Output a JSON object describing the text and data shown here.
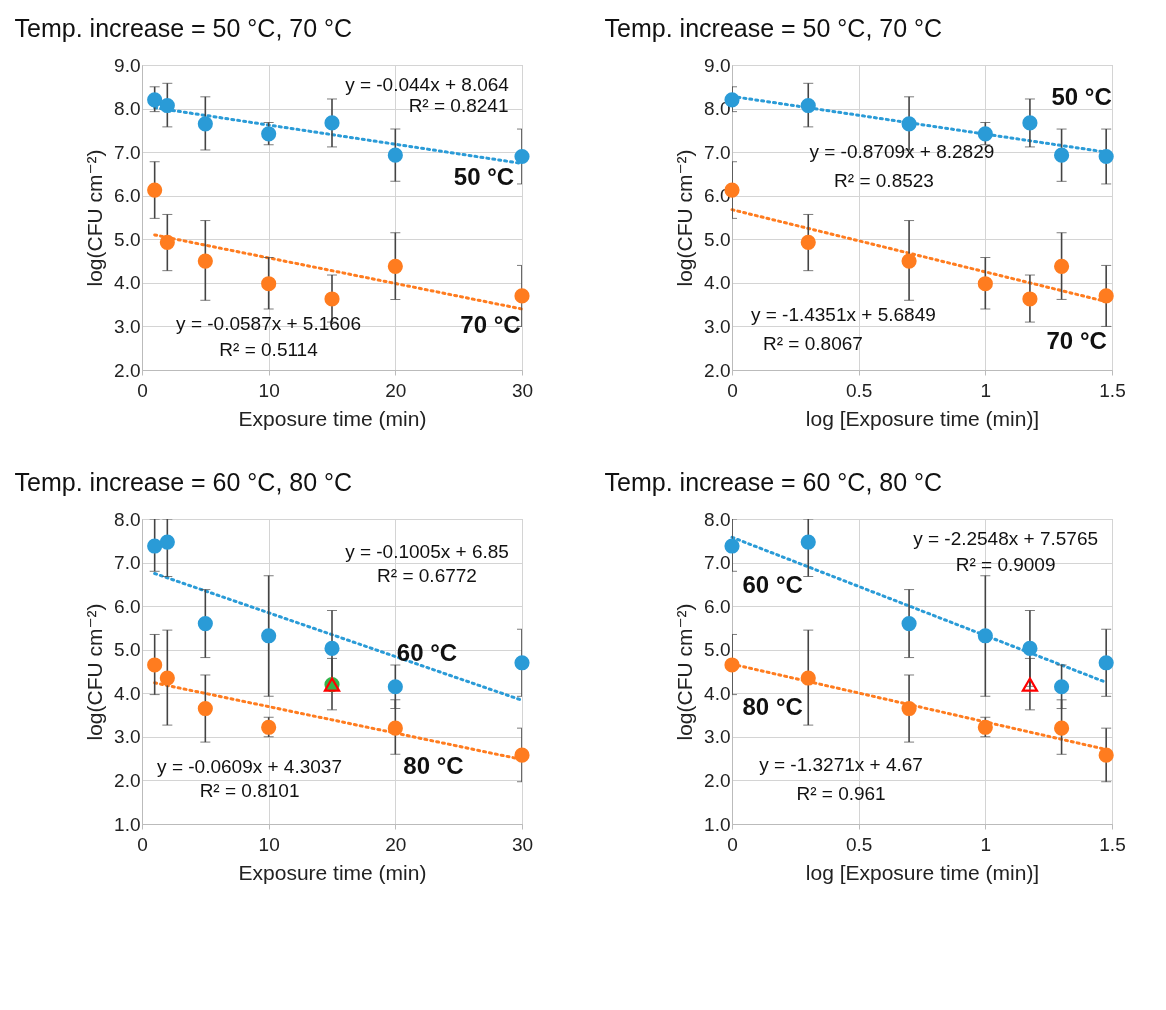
{
  "chart_data": [
    {
      "type": "scatter",
      "title": "Temp. increase = 50 °C, 70 °C",
      "xlabel": "Exposure time (min)",
      "ylabel": "log(CFU cm⁻²)",
      "x": [
        1,
        2,
        5,
        10,
        15,
        20,
        30
      ],
      "xlim": [
        0,
        30
      ],
      "xticks": [
        0,
        10,
        20,
        30
      ],
      "ylim": [
        2,
        9
      ],
      "yticks": [
        {
          "value": 2,
          "label": "2.0"
        },
        {
          "value": 3,
          "label": "3.0"
        },
        {
          "value": 4,
          "label": "4.0"
        },
        {
          "value": 5,
          "label": "5.0"
        },
        {
          "value": 6,
          "label": "6.0"
        },
        {
          "value": 7,
          "label": "7.0"
        },
        {
          "value": 8,
          "label": "8.0"
        },
        {
          "value": 9,
          "label": "9.0"
        }
      ],
      "grid": true,
      "marker": "circle",
      "series": [
        {
          "type": "line",
          "x": [
            1,
            30
          ],
          "values": [
            8.02,
            6.74
          ],
          "color": "#2a9bd7",
          "line_style": "dotted",
          "marker": "none"
        },
        {
          "type": "line",
          "x": [
            1,
            30
          ],
          "values": [
            5.1,
            3.4
          ],
          "color": "#ff7c1f",
          "line_style": "dotted",
          "marker": "none"
        },
        {
          "color": "#2a9bd7",
          "values": [
            8.2,
            8.07,
            7.65,
            7.42,
            7.67,
            6.93,
            6.9
          ],
          "errors": [
            [
              7.93,
              8.5
            ],
            [
              7.58,
              8.58
            ],
            [
              7.05,
              8.27
            ],
            [
              7.17,
              7.68
            ],
            [
              7.12,
              8.22
            ],
            [
              6.33,
              7.53
            ],
            [
              6.27,
              7.53
            ]
          ]
        },
        {
          "color": "#ff7c1f",
          "values": [
            6.13,
            4.93,
            4.5,
            3.98,
            3.63,
            4.38,
            3.7
          ],
          "errors": [
            [
              5.48,
              6.78
            ],
            [
              4.28,
              5.57
            ],
            [
              3.6,
              5.43
            ],
            [
              3.4,
              4.58
            ],
            [
              3.1,
              4.18
            ],
            [
              3.62,
              5.15
            ],
            [
              3.0,
              4.4
            ]
          ]
        }
      ],
      "annotations": [
        "y = -0.044x + 8.064",
        "R² = 0.8241",
        "50 °C",
        "y = -0.0587x + 5.1606",
        "R² = 0.5114",
        "70 °C"
      ]
    },
    {
      "type": "scatter",
      "title": "Temp. increase = 50 °C, 70 °C",
      "xlabel": "log [Exposure time (min)]",
      "ylabel": "log(CFU cm⁻²)",
      "x": [
        0,
        0.301,
        0.699,
        1,
        1.176,
        1.301,
        1.477
      ],
      "xlim": [
        0,
        1.5
      ],
      "xticks": [
        0,
        0.5,
        1,
        1.5
      ],
      "ylim": [
        2,
        9
      ],
      "yticks": [
        {
          "value": 2,
          "label": "2.0"
        },
        {
          "value": 3,
          "label": "3.0"
        },
        {
          "value": 4,
          "label": "4.0"
        },
        {
          "value": 5,
          "label": "5.0"
        },
        {
          "value": 6,
          "label": "6.0"
        },
        {
          "value": 7,
          "label": "7.0"
        },
        {
          "value": 8,
          "label": "8.0"
        },
        {
          "value": 9,
          "label": "9.0"
        }
      ],
      "grid": true,
      "marker": "circle",
      "series": [
        {
          "type": "line",
          "x": [
            0,
            1.477
          ],
          "values": [
            8.28,
            7.0
          ],
          "color": "#2a9bd7",
          "line_style": "dotted",
          "marker": "none"
        },
        {
          "type": "line",
          "x": [
            0,
            1.477
          ],
          "values": [
            5.68,
            3.57
          ],
          "color": "#ff7c1f",
          "line_style": "dotted",
          "marker": "none"
        },
        {
          "color": "#2a9bd7",
          "values": [
            8.2,
            8.07,
            7.65,
            7.42,
            7.67,
            6.93,
            6.9
          ],
          "errors": [
            [
              7.93,
              8.5
            ],
            [
              7.58,
              8.58
            ],
            [
              7.05,
              8.27
            ],
            [
              7.17,
              7.68
            ],
            [
              7.12,
              8.22
            ],
            [
              6.33,
              7.53
            ],
            [
              6.27,
              7.53
            ]
          ]
        },
        {
          "color": "#ff7c1f",
          "values": [
            6.13,
            4.93,
            4.5,
            3.98,
            3.63,
            4.38,
            3.7
          ],
          "errors": [
            [
              5.48,
              6.78
            ],
            [
              4.28,
              5.57
            ],
            [
              3.6,
              5.43
            ],
            [
              3.4,
              4.58
            ],
            [
              3.1,
              4.18
            ],
            [
              3.62,
              5.15
            ],
            [
              3.0,
              4.4
            ]
          ]
        }
      ],
      "annotations": [
        "y = -0.8709x + 8.2829",
        "R² = 0.8523",
        "50 °C",
        "y = -1.4351x + 5.6849",
        "R² = 0.8067",
        "70 °C"
      ]
    },
    {
      "type": "scatter",
      "title": "Temp. increase = 60 °C, 80 °C",
      "xlabel": "Exposure time (min)",
      "ylabel": "log(CFU cm⁻²)",
      "x": [
        1,
        2,
        5,
        10,
        15,
        20,
        30
      ],
      "xlim": [
        0,
        30
      ],
      "xticks": [
        0,
        10,
        20,
        30
      ],
      "ylim": [
        1,
        8
      ],
      "yticks": [
        {
          "value": 1,
          "label": "1.0"
        },
        {
          "value": 2,
          "label": "2.0"
        },
        {
          "value": 3,
          "label": "3.0"
        },
        {
          "value": 4,
          "label": "4.0"
        },
        {
          "value": 5,
          "label": "5.0"
        },
        {
          "value": 6,
          "label": "6.0"
        },
        {
          "value": 7,
          "label": "7.0"
        },
        {
          "value": 8,
          "label": "8.0"
        }
      ],
      "grid": true,
      "marker": "circle",
      "series": [
        {
          "type": "line",
          "x": [
            1,
            30
          ],
          "values": [
            6.75,
            3.84
          ],
          "color": "#2a9bd7",
          "line_style": "dotted",
          "marker": "none"
        },
        {
          "type": "line",
          "x": [
            1,
            30
          ],
          "values": [
            4.24,
            2.48
          ],
          "color": "#ff7c1f",
          "line_style": "dotted",
          "marker": "none"
        },
        {
          "color": "#2a9bd7",
          "values": [
            7.38,
            7.47,
            5.6,
            5.32,
            5.03,
            4.15,
            4.7
          ],
          "errors": [
            [
              6.8,
              8.0
            ],
            [
              6.68,
              8.0
            ],
            [
              4.82,
              6.38
            ],
            [
              3.93,
              6.7
            ],
            [
              4.16,
              5.9
            ],
            [
              3.65,
              4.65
            ],
            [
              3.93,
              5.47
            ]
          ]
        },
        {
          "color": "#ff7c1f",
          "x": [
            1,
            2,
            5,
            10,
            20,
            30
          ],
          "values": [
            4.65,
            4.35,
            3.65,
            3.22,
            3.2,
            2.58
          ],
          "errors": [
            [
              3.97,
              5.35
            ],
            [
              3.27,
              5.45
            ],
            [
              2.88,
              4.42
            ],
            [
              3.0,
              3.45
            ],
            [
              2.6,
              3.85
            ],
            [
              1.97,
              3.2
            ]
          ]
        },
        {
          "color": "#33b54a",
          "x": [
            15
          ],
          "values": [
            4.2
          ]
        },
        {
          "color": "#ff0000",
          "x": [
            15
          ],
          "values": [
            4.2
          ],
          "marker": "triangle",
          "errors": [
            [
              3.62,
              4.8
            ]
          ]
        }
      ],
      "annotations": [
        "y = -0.1005x + 6.85",
        "R² = 0.6772",
        "60 °C",
        "y = -0.0609x + 4.3037",
        "R² = 0.8101",
        "80 °C"
      ]
    },
    {
      "type": "scatter",
      "title": "Temp. increase = 60 °C, 80 °C",
      "xlabel": "log [Exposure time (min)]",
      "ylabel": "log(CFU cm⁻²)",
      "x": [
        0,
        0.301,
        0.699,
        1,
        1.176,
        1.301,
        1.477
      ],
      "xlim": [
        0,
        1.5
      ],
      "xticks": [
        0,
        0.5,
        1,
        1.5
      ],
      "ylim": [
        1,
        8
      ],
      "yticks": [
        {
          "value": 1,
          "label": "1.0"
        },
        {
          "value": 2,
          "label": "2.0"
        },
        {
          "value": 3,
          "label": "3.0"
        },
        {
          "value": 4,
          "label": "4.0"
        },
        {
          "value": 5,
          "label": "5.0"
        },
        {
          "value": 6,
          "label": "6.0"
        },
        {
          "value": 7,
          "label": "7.0"
        },
        {
          "value": 8,
          "label": "8.0"
        }
      ],
      "grid": true,
      "marker": "circle",
      "series": [
        {
          "type": "line",
          "x": [
            0,
            1.477
          ],
          "values": [
            7.58,
            4.25
          ],
          "color": "#2a9bd7",
          "line_style": "dotted",
          "marker": "none"
        },
        {
          "type": "line",
          "x": [
            0,
            1.477
          ],
          "values": [
            4.67,
            2.71
          ],
          "color": "#ff7c1f",
          "line_style": "dotted",
          "marker": "none"
        },
        {
          "color": "#2a9bd7",
          "values": [
            7.38,
            7.47,
            5.6,
            5.32,
            5.03,
            4.15,
            4.7
          ],
          "errors": [
            [
              6.8,
              8.0
            ],
            [
              6.68,
              8.0
            ],
            [
              4.82,
              6.38
            ],
            [
              3.93,
              6.7
            ],
            [
              4.16,
              5.9
            ],
            [
              3.65,
              4.65
            ],
            [
              3.93,
              5.47
            ]
          ]
        },
        {
          "color": "#ff7c1f",
          "x": [
            0,
            0.301,
            0.699,
            1,
            1.301,
            1.477
          ],
          "values": [
            4.65,
            4.35,
            3.65,
            3.22,
            3.2,
            2.58
          ],
          "errors": [
            [
              3.97,
              5.35
            ],
            [
              3.27,
              5.45
            ],
            [
              2.88,
              4.42
            ],
            [
              3.0,
              3.45
            ],
            [
              2.6,
              3.85
            ],
            [
              1.97,
              3.2
            ]
          ]
        },
        {
          "color": "#ff0000",
          "x": [
            1.176
          ],
          "values": [
            4.2
          ],
          "marker": "triangle",
          "errors": [
            [
              3.62,
              4.8
            ]
          ]
        }
      ],
      "annotations": [
        "y = -2.2548x + 7.5765",
        "R² = 0.9009",
        "60 °C",
        "y = -1.3271x + 4.67",
        "R² = 0.961",
        "80 °C"
      ]
    }
  ]
}
